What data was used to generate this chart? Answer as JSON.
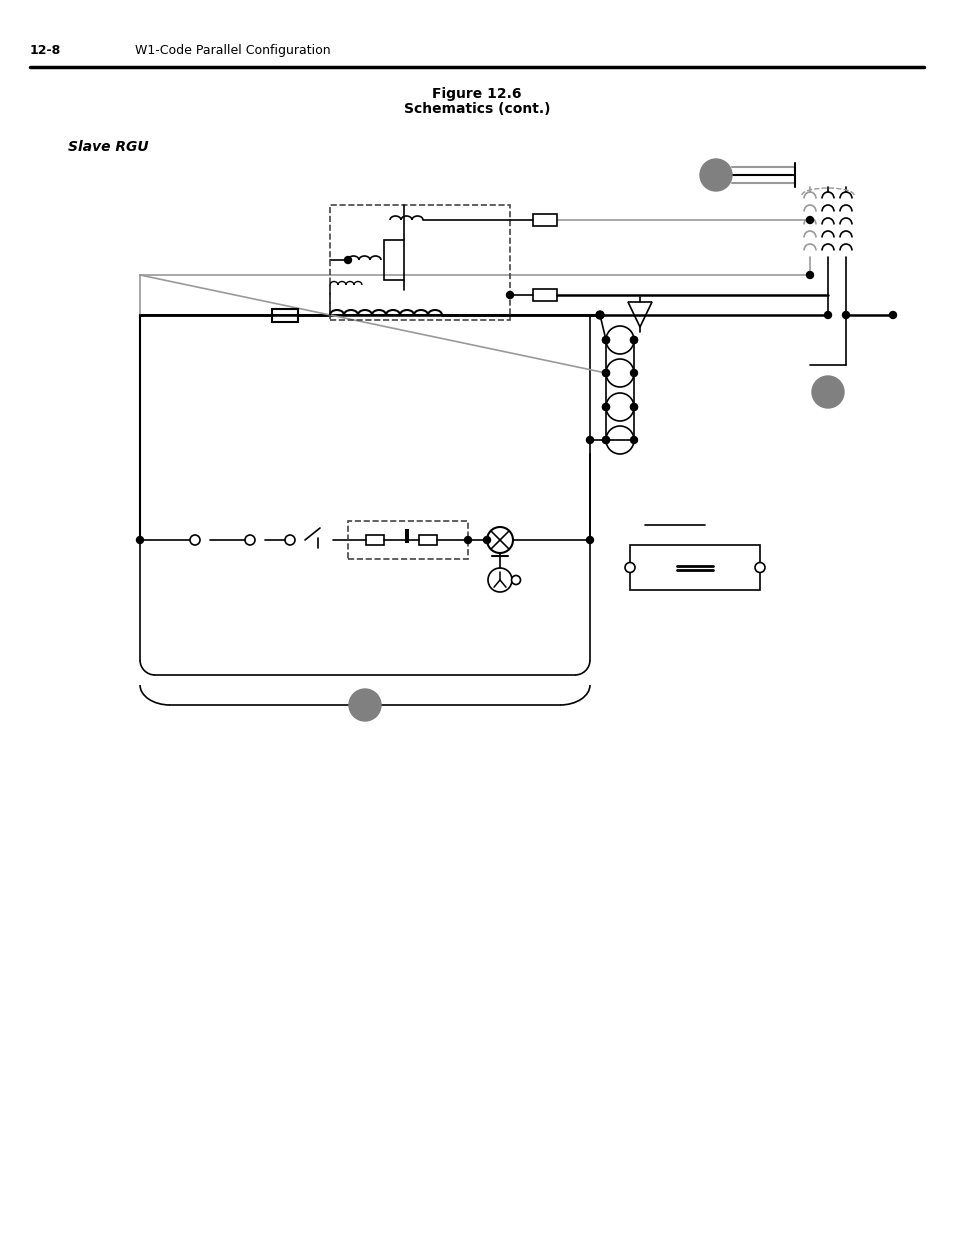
{
  "title_line1": "Figure 12.6",
  "title_line2": "Schematics (cont.)",
  "header_left": "12-8",
  "header_right": "W1-Code Parallel Configuration",
  "slave_rgu_label": "Slave RGU",
  "bg_color": "#ffffff",
  "line_color": "#000000",
  "gray_color": "#808080",
  "light_gray": "#999999",
  "dashed_color": "#444444"
}
